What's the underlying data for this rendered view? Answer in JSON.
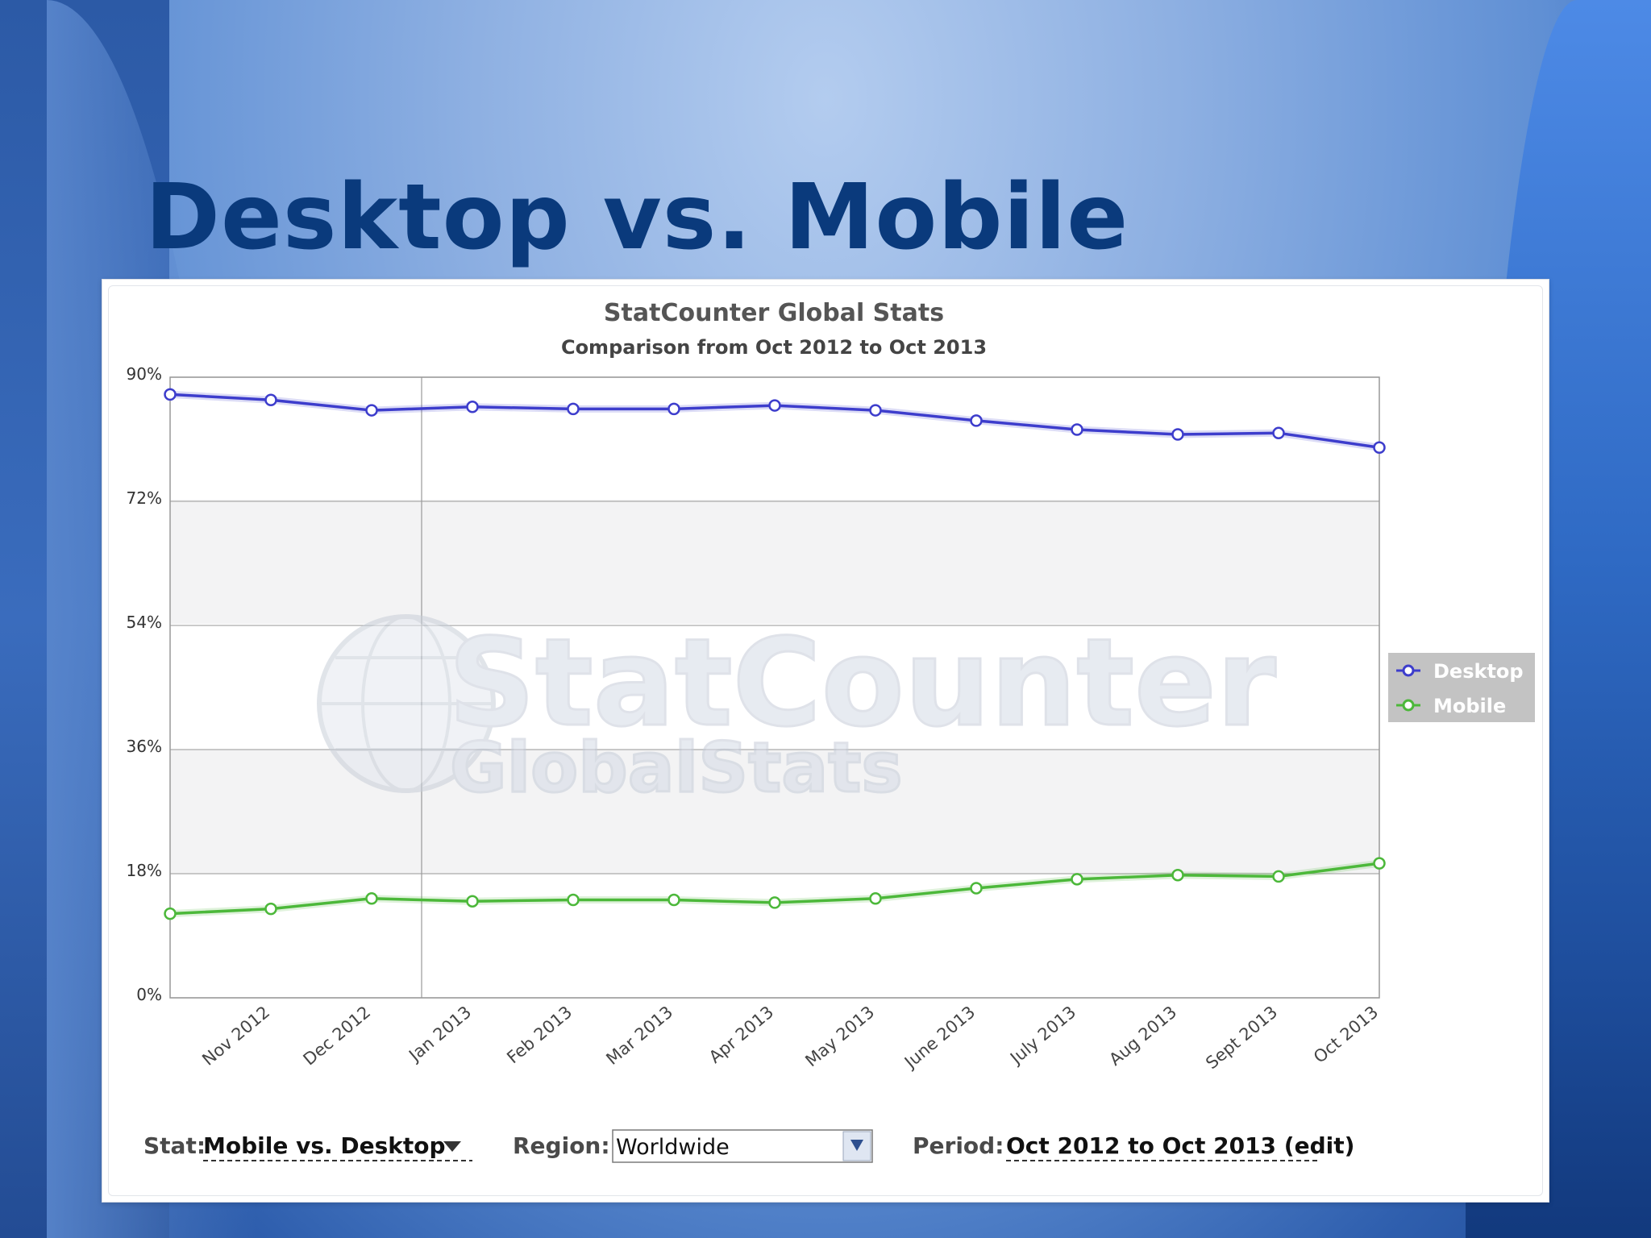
{
  "slide": {
    "title": "Desktop vs. Mobile"
  },
  "watermark": {
    "line1": "StatCounter",
    "line2": "GlobalStats"
  },
  "chart_data": {
    "type": "line",
    "title": "StatCounter Global Stats",
    "subtitle": "Comparison from Oct 2012 to Oct 2013",
    "categories": [
      "Oct 2012",
      "Nov 2012",
      "Dec 2012",
      "Jan 2013",
      "Feb 2013",
      "Mar 2013",
      "Apr 2013",
      "May 2013",
      "June 2013",
      "July 2013",
      "Aug 2013",
      "Sept 2013",
      "Oct 2013"
    ],
    "tick_labels": [
      "Nov 2012",
      "Dec 2012",
      "Jan 2013",
      "Feb 2013",
      "Mar 2013",
      "Apr 2013",
      "May 2013",
      "June 2013",
      "July 2013",
      "Aug 2013",
      "Sept 2013",
      "Oct 2013"
    ],
    "y_ticks": [
      "0%",
      "18%",
      "36%",
      "54%",
      "72%",
      "90%"
    ],
    "ylim": [
      0,
      90
    ],
    "series": [
      {
        "name": "Desktop",
        "color": "#3d3dcc",
        "values": [
          87.5,
          86.7,
          85.2,
          85.7,
          85.4,
          85.4,
          85.9,
          85.2,
          83.7,
          82.4,
          81.7,
          81.9,
          79.8
        ]
      },
      {
        "name": "Mobile",
        "color": "#4cb83a",
        "values": [
          12.2,
          12.9,
          14.4,
          14.0,
          14.2,
          14.2,
          13.8,
          14.4,
          15.9,
          17.2,
          17.8,
          17.6,
          19.5
        ]
      }
    ],
    "legend_position": "right",
    "grid": true
  },
  "controls": {
    "stat_label": "Stat:",
    "stat_value": "Mobile vs. Desktop",
    "region_label": "Region:",
    "region_value": "Worldwide",
    "period_label": "Period:",
    "period_value": "Oct 2012 to Oct 2013 (edit)"
  }
}
